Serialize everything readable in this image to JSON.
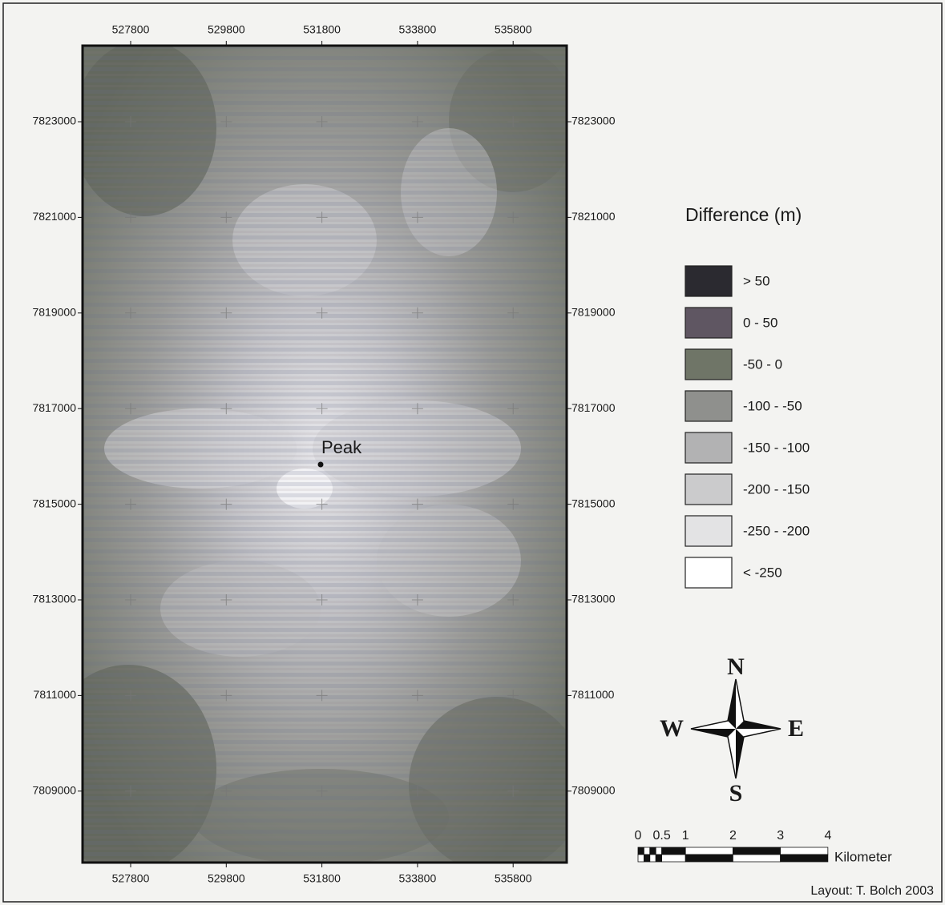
{
  "map": {
    "x_ticks": [
      527800,
      529800,
      531800,
      533800,
      535800
    ],
    "y_ticks": [
      7823000,
      7821000,
      7819000,
      7817000,
      7815000,
      7813000,
      7811000,
      7809000
    ],
    "peak_label": "Peak"
  },
  "legend": {
    "title": "Difference (m)",
    "items": [
      {
        "label": "> 50",
        "color": "#2b2a30"
      },
      {
        "label": "0 - 50",
        "color": "#5f5662"
      },
      {
        "label": "-50 - 0",
        "color": "#6f7567"
      },
      {
        "label": "-100 - -50",
        "color": "#8f908d"
      },
      {
        "label": "-150 - -100",
        "color": "#b2b2b3"
      },
      {
        "label": "-200 - -150",
        "color": "#cbcbcc"
      },
      {
        "label": "-250 - -200",
        "color": "#e3e3e4"
      },
      {
        "label": "< -250",
        "color": "#ffffff"
      }
    ]
  },
  "compass": {
    "north": "N",
    "south": "S",
    "west": "W",
    "east": "E"
  },
  "scale_bar": {
    "labels": [
      0,
      0.5,
      1,
      2,
      3,
      4
    ],
    "unit": "Kilometer"
  },
  "credit": "Layout: T. Bolch 2003"
}
